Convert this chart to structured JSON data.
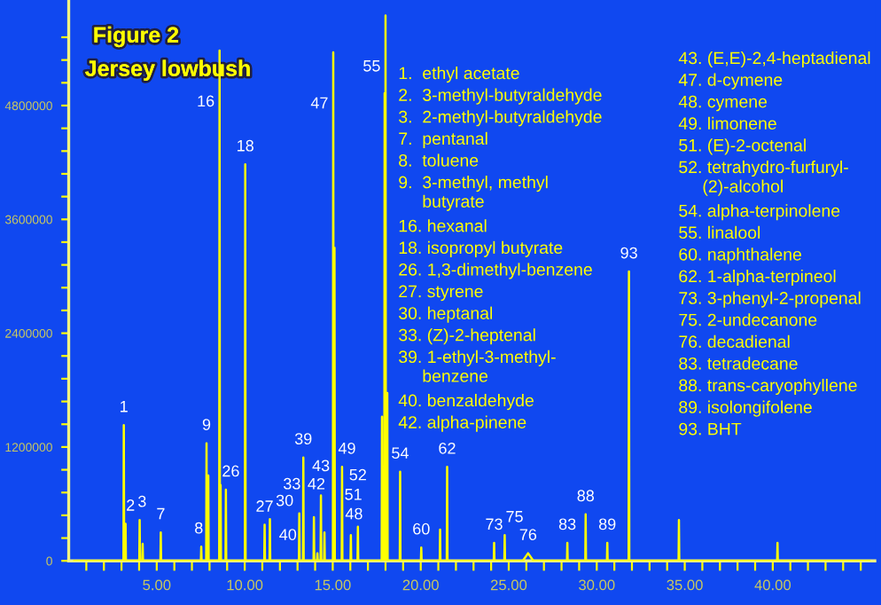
{
  "chart_data": {
    "type": "line",
    "title": "Figure 2",
    "subtitle": "Jersey lowbush",
    "x": [
      0.3,
      3.11,
      3.13,
      3.15,
      3.21,
      3.23,
      3.25,
      4.01,
      4.03,
      4.05,
      4.18,
      4.2,
      4.22,
      5.21,
      5.23,
      5.25,
      7.51,
      7.53,
      7.55,
      7.81,
      7.83,
      7.85,
      7.91,
      7.93,
      7.95,
      8.55,
      8.57,
      8.59,
      8.61,
      8.63,
      8.65,
      8.91,
      8.93,
      8.95,
      10.01,
      10.03,
      10.05,
      11.11,
      11.13,
      11.15,
      11.41,
      11.43,
      11.45,
      13.08,
      13.1,
      13.12,
      13.31,
      13.33,
      13.35,
      13.91,
      13.93,
      13.95,
      14.11,
      14.13,
      14.15,
      14.31,
      14.33,
      14.35,
      14.51,
      14.53,
      14.55,
      15.01,
      15.03,
      15.05,
      15.08,
      15.1,
      15.12,
      15.51,
      15.53,
      15.55,
      16.01,
      16.03,
      16.05,
      16.41,
      16.43,
      16.45,
      17.78,
      17.8,
      17.82,
      17.93,
      17.95,
      17.97,
      17.98,
      18.0,
      18.02,
      18.08,
      18.1,
      18.12,
      18.81,
      18.83,
      18.85,
      20.01,
      20.03,
      20.05,
      21.08,
      21.1,
      21.12,
      21.48,
      21.5,
      21.52,
      24.15,
      24.17,
      24.19,
      24.75,
      24.77,
      24.79,
      25.8,
      26.1,
      26.4,
      28.31,
      28.33,
      28.35,
      29.35,
      29.37,
      29.39,
      30.58,
      30.6,
      30.62,
      31.81,
      31.83,
      31.85,
      34.65,
      34.67,
      34.69,
      40.25,
      40.27,
      40.29,
      45.5
    ],
    "series": [
      {
        "color": "#ffff00",
        "values": [
          0,
          0,
          1430000,
          0,
          0,
          390000,
          0,
          0,
          430000,
          0,
          0,
          180000,
          0,
          0,
          300000,
          0,
          0,
          150000,
          0,
          0,
          1240000,
          0,
          0,
          900000,
          0,
          0,
          5380000,
          0,
          0,
          800000,
          0,
          0,
          750000,
          0,
          0,
          4180000,
          0,
          0,
          380000,
          0,
          0,
          440000,
          0,
          0,
          500000,
          0,
          0,
          1090000,
          0,
          0,
          460000,
          0,
          0,
          80000,
          0,
          0,
          690000,
          0,
          0,
          300000,
          0,
          0,
          5360000,
          0,
          0,
          3300000,
          0,
          0,
          990000,
          0,
          0,
          270000,
          0,
          0,
          360000,
          0,
          0,
          1520000,
          0,
          0,
          4930000,
          0,
          0,
          5750000,
          0,
          0,
          1770000,
          0,
          0,
          940000,
          0,
          0,
          140000,
          0,
          0,
          330000,
          0,
          0,
          990000,
          0,
          0,
          190000,
          0,
          0,
          270000,
          0,
          0,
          80000,
          0,
          0,
          190000,
          0,
          0,
          490000,
          0,
          0,
          190000,
          0,
          0,
          3050000,
          0,
          0,
          430000,
          0,
          0,
          190000,
          0,
          0
        ]
      }
    ],
    "xlim": [
      0,
      45.8
    ],
    "ylim": [
      0,
      5900000
    ],
    "xticks": [
      {
        "value": 1,
        "label": null
      },
      {
        "value": 2,
        "label": null
      },
      {
        "value": 3,
        "label": null
      },
      {
        "value": 4,
        "label": null
      },
      {
        "value": 5,
        "label": "5.00"
      },
      {
        "value": 6,
        "label": null
      },
      {
        "value": 7,
        "label": null
      },
      {
        "value": 8,
        "label": null
      },
      {
        "value": 9,
        "label": null
      },
      {
        "value": 10,
        "label": "10.00"
      },
      {
        "value": 11,
        "label": null
      },
      {
        "value": 12,
        "label": null
      },
      {
        "value": 13,
        "label": null
      },
      {
        "value": 14,
        "label": null
      },
      {
        "value": 15,
        "label": "15.00"
      },
      {
        "value": 16,
        "label": null
      },
      {
        "value": 17,
        "label": null
      },
      {
        "value": 18,
        "label": null
      },
      {
        "value": 19,
        "label": null
      },
      {
        "value": 20,
        "label": "20.00"
      },
      {
        "value": 21,
        "label": null
      },
      {
        "value": 22,
        "label": null
      },
      {
        "value": 23,
        "label": null
      },
      {
        "value": 24,
        "label": null
      },
      {
        "value": 25,
        "label": "25.00"
      },
      {
        "value": 26,
        "label": null
      },
      {
        "value": 27,
        "label": null
      },
      {
        "value": 28,
        "label": null
      },
      {
        "value": 29,
        "label": null
      },
      {
        "value": 30,
        "label": "30.00"
      },
      {
        "value": 31,
        "label": null
      },
      {
        "value": 32,
        "label": null
      },
      {
        "value": 33,
        "label": null
      },
      {
        "value": 34,
        "label": null
      },
      {
        "value": 35,
        "label": "35.00"
      },
      {
        "value": 36,
        "label": null
      },
      {
        "value": 37,
        "label": null
      },
      {
        "value": 38,
        "label": null
      },
      {
        "value": 39,
        "label": null
      },
      {
        "value": 40,
        "label": "40.00"
      },
      {
        "value": 41,
        "label": null
      },
      {
        "value": 42,
        "label": null
      },
      {
        "value": 43,
        "label": null
      },
      {
        "value": 44,
        "label": null
      },
      {
        "value": 45,
        "label": null
      }
    ],
    "yticks": [
      0,
      {
        "value": 240000,
        "label": null
      },
      {
        "value": 480000,
        "label": null
      },
      {
        "value": 720000,
        "label": null
      },
      {
        "value": 960000,
        "label": null
      },
      1200000,
      {
        "value": 1440000,
        "label": null
      },
      {
        "value": 1680000,
        "label": null
      },
      {
        "value": 1920000,
        "label": null
      },
      {
        "value": 2160000,
        "label": null
      },
      2400000,
      {
        "value": 2640000,
        "label": null
      },
      {
        "value": 2880000,
        "label": null
      },
      {
        "value": 3120000,
        "label": null
      },
      {
        "value": 3360000,
        "label": null
      },
      3600000,
      {
        "value": 3840000,
        "label": null
      },
      {
        "value": 4080000,
        "label": null
      },
      {
        "value": 4320000,
        "label": null
      },
      {
        "value": 4560000,
        "label": null
      },
      4800000,
      {
        "value": 5040000,
        "label": null
      },
      {
        "value": 5280000,
        "label": null
      },
      {
        "value": 5520000,
        "label": null
      }
    ],
    "annotations": [
      {
        "text": "1",
        "x": 3.13,
        "y": 1430000
      },
      {
        "text": "2",
        "x": 3.23,
        "y": 390000
      },
      {
        "text": "3",
        "x": 4.03,
        "y": 430000
      },
      {
        "text": "7",
        "x": 5.23,
        "y": 300000
      },
      {
        "text": "8",
        "x": 7.53,
        "y": 150000
      },
      {
        "text": "9",
        "x": 7.83,
        "y": 1240000
      },
      {
        "text": "16",
        "x": 8.57,
        "y": 5380000
      },
      {
        "text": "26",
        "x": 8.93,
        "y": 750000
      },
      {
        "text": "18",
        "x": 10.03,
        "y": 4180000
      },
      {
        "text": "27",
        "x": 11.13,
        "y": 380000
      },
      {
        "text": "30",
        "x": 11.43,
        "y": 440000
      },
      {
        "text": "33",
        "x": 13.1,
        "y": 500000
      },
      {
        "text": "39",
        "x": 13.33,
        "y": 1090000
      },
      {
        "text": "42",
        "x": 13.93,
        "y": 460000
      },
      {
        "text": "43",
        "x": 14.33,
        "y": 690000
      },
      {
        "text": "40",
        "x": 14.13,
        "y": 80000
      },
      {
        "text": "48",
        "x": 14.53,
        "y": 300000
      },
      {
        "text": "47",
        "x": 15.03,
        "y": 5360000
      },
      {
        "text": "49",
        "x": 15.53,
        "y": 990000
      },
      {
        "text": "51",
        "x": 16.03,
        "y": 270000
      },
      {
        "text": "52",
        "x": 16.43,
        "y": 360000
      },
      {
        "text": "55",
        "x": 18.0,
        "y": 5750000
      },
      {
        "text": "54",
        "x": 18.83,
        "y": 940000
      },
      {
        "text": "60",
        "x": 20.03,
        "y": 140000
      },
      {
        "text": "62",
        "x": 21.5,
        "y": 990000
      },
      {
        "text": "73",
        "x": 24.17,
        "y": 190000
      },
      {
        "text": "75",
        "x": 24.77,
        "y": 270000
      },
      {
        "text": "76",
        "x": 26.1,
        "y": 80000
      },
      {
        "text": "83",
        "x": 28.33,
        "y": 190000
      },
      {
        "text": "88",
        "x": 29.37,
        "y": 490000
      },
      {
        "text": "89",
        "x": 30.6,
        "y": 190000
      },
      {
        "text": "93",
        "x": 31.83,
        "y": 3050000
      },
      "1.  ethyl acetate",
      "2.  3-methyl-butyraldehyde",
      "3.  2-methyl-butyraldehyde",
      "7.  pentanal",
      "8.  toluene",
      "9.  3-methyl, methyl\n     butyrate",
      "16. hexanal",
      "18. isopropyl butyrate",
      "26. 1,3-dimethyl-benzene",
      "27. styrene",
      "30. heptanal",
      "33. (Z)-2-heptenal",
      "39. 1-ethyl-3-methyl-\n     benzene",
      "40. benzaldehyde",
      "42. alpha-pinene",
      "43. (E,E)-2,4-heptadienal",
      "47. d-cymene",
      "48. cymene",
      "49. limonene",
      "51. (E)-2-octenal",
      "52. tetrahydro-furfuryl-\n     (2)-alcohol",
      "54. alpha-terpinolene",
      "55. linalool",
      "60. naphthalene",
      "62. 1-alpha-terpineol",
      "73. 3-phenyl-2-propenal",
      "75. 2-undecanone",
      "76. decadienal",
      "83. tetradecane",
      "88. trans-caryophyllene",
      "89. isolongifolene",
      "93. BHT"
    ]
  }
}
